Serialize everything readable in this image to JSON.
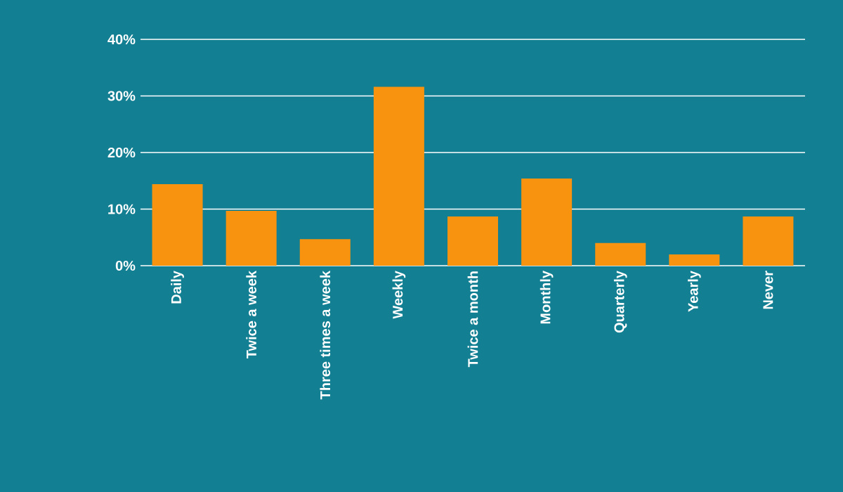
{
  "chart_data": {
    "type": "bar",
    "categories": [
      "Daily",
      "Twice a week",
      "Three times a week",
      "Weekly",
      "Twice a month",
      "Monthly",
      "Quarterly",
      "Yearly",
      "Never"
    ],
    "values": [
      14.4,
      9.7,
      4.7,
      31.6,
      8.7,
      15.4,
      4.0,
      2.0,
      8.7
    ],
    "color": "#f7930f",
    "ylim": [
      0,
      40
    ],
    "yticks": [
      {
        "value": 0,
        "label": "0%"
      },
      {
        "value": 10,
        "label": "10%"
      },
      {
        "value": 20,
        "label": "20%"
      },
      {
        "value": 30,
        "label": "30%"
      },
      {
        "value": 40,
        "label": "40%"
      }
    ],
    "grid": "y"
  }
}
